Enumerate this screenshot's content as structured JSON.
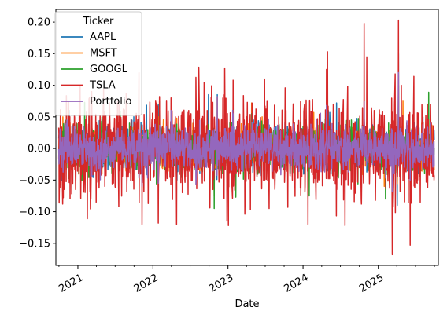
{
  "chart_data": {
    "type": "line",
    "title": "",
    "xlabel": "Date",
    "ylabel": "",
    "x_ticks": [
      "2021",
      "2022",
      "2023",
      "2024",
      "2025"
    ],
    "y_ticks": [
      "0.20",
      "0.15",
      "0.10",
      "0.05",
      "0.00",
      "−0.05",
      "−0.10",
      "−0.15"
    ],
    "xlim": [
      "2020-09-16",
      "2025-10-20"
    ],
    "ylim": [
      -0.185,
      0.22
    ],
    "grid": false,
    "legend": {
      "title": "Ticker",
      "placement": "top-left",
      "entries": [
        "AAPL",
        "MSFT",
        "GOOGL",
        "TSLA",
        "Portfolio"
      ]
    },
    "series": [
      {
        "name": "AAPL",
        "color": "#1f77b4",
        "values": [
          [
            "2020-10-13",
            -0.05
          ],
          [
            "2020-11-20",
            0.06
          ],
          [
            "2021-03-10",
            -0.04
          ],
          [
            "2021-08-01",
            0.02
          ],
          [
            "2022-01-27",
            0.07
          ],
          [
            "2022-04-28",
            -0.05
          ],
          [
            "2022-07-29",
            0.05
          ],
          [
            "2022-09-28",
            0.085
          ],
          [
            "2022-11-10",
            0.085
          ],
          [
            "2023-05-05",
            0.045
          ],
          [
            "2024-05-03",
            0.06
          ],
          [
            "2024-06-12",
            0.072
          ],
          [
            "2025-04-03",
            -0.09
          ],
          [
            "2025-04-09",
            0.15
          ],
          [
            "2025-08-06",
            0.05
          ]
        ]
      },
      {
        "name": "MSFT",
        "color": "#ff7f0e",
        "values": [
          [
            "2020-10-20",
            0.05
          ],
          [
            "2021-04-28",
            -0.04
          ],
          [
            "2022-01-28",
            0.05
          ],
          [
            "2022-04-27",
            0.048
          ],
          [
            "2022-10-26",
            -0.075
          ],
          [
            "2022-11-10",
            0.082
          ],
          [
            "2023-04-26",
            0.072
          ],
          [
            "2024-01-31",
            -0.03
          ],
          [
            "2025-01-30",
            -0.06
          ],
          [
            "2025-04-09",
            0.1
          ],
          [
            "2025-05-01",
            0.076
          ],
          [
            "2025-07-31",
            0.04
          ]
        ]
      },
      {
        "name": "GOOGL",
        "color": "#2ca02c",
        "values": [
          [
            "2021-02-03",
            0.073
          ],
          [
            "2021-04-28",
            0.05
          ],
          [
            "2022-02-02",
            0.075
          ],
          [
            "2022-10-26",
            -0.095
          ],
          [
            "2023-02-08",
            -0.077
          ],
          [
            "2023-04-26",
            0.055
          ],
          [
            "2024-01-31",
            -0.075
          ],
          [
            "2024-04-26",
            0.1
          ],
          [
            "2024-07-24",
            -0.05
          ],
          [
            "2025-02-05",
            -0.08
          ],
          [
            "2025-04-09",
            0.1
          ],
          [
            "2025-09-03",
            0.089
          ]
        ]
      },
      {
        "name": "TSLA",
        "color": "#d62728",
        "values": [
          [
            "2020-10-01",
            0.02
          ],
          [
            "2020-10-22",
            -0.078
          ],
          [
            "2020-11-17",
            0.075
          ],
          [
            "2020-12-21",
            -0.065
          ],
          [
            "2021-01-08",
            0.095
          ],
          [
            "2021-03-05",
            -0.08
          ],
          [
            "2021-03-09",
            0.09
          ],
          [
            "2021-05-12",
            -0.06
          ],
          [
            "2021-10-25",
            0.12
          ],
          [
            "2021-11-09",
            -0.12
          ],
          [
            "2021-12-20",
            -0.05
          ],
          [
            "2022-01-27",
            -0.118
          ],
          [
            "2022-03-30",
            0.08
          ],
          [
            "2022-04-26",
            -0.12
          ],
          [
            "2022-05-24",
            -0.07
          ],
          [
            "2022-06-24",
            0.06
          ],
          [
            "2022-10-20",
            -0.065
          ],
          [
            "2022-12-27",
            -0.115
          ],
          [
            "2023-01-03",
            -0.122
          ],
          [
            "2023-01-26",
            0.108
          ],
          [
            "2023-04-20",
            -0.097
          ],
          [
            "2023-07-20",
            -0.095
          ],
          [
            "2023-10-19",
            -0.093
          ],
          [
            "2024-01-25",
            -0.12
          ],
          [
            "2024-04-24",
            0.125
          ],
          [
            "2024-04-29",
            0.153
          ],
          [
            "2024-07-23",
            -0.122
          ],
          [
            "2024-10-11",
            -0.088
          ],
          [
            "2024-10-24",
            0.198
          ],
          [
            "2024-11-06",
            0.145
          ],
          [
            "2024-12-18",
            -0.082
          ],
          [
            "2025-03-10",
            -0.168
          ],
          [
            "2025-03-24",
            0.118
          ],
          [
            "2025-04-09",
            0.203
          ],
          [
            "2025-04-23",
            0.1
          ],
          [
            "2025-06-05",
            -0.153
          ],
          [
            "2025-07-24",
            -0.085
          ],
          [
            "2025-09-12",
            0.07
          ]
        ]
      },
      {
        "name": "Portfolio",
        "color": "#9467bd",
        "values": [
          [
            "2020-10-13",
            -0.03
          ],
          [
            "2020-11-09",
            0.045
          ],
          [
            "2021-03-05",
            -0.045
          ],
          [
            "2021-11-09",
            -0.06
          ],
          [
            "2022-01-27",
            -0.055
          ],
          [
            "2022-03-30",
            0.06
          ],
          [
            "2022-11-10",
            0.082
          ],
          [
            "2023-01-26",
            0.055
          ],
          [
            "2024-04-24",
            0.068
          ],
          [
            "2024-10-24",
            0.075
          ],
          [
            "2025-03-10",
            -0.068
          ],
          [
            "2025-04-09",
            0.12
          ],
          [
            "2025-06-05",
            -0.05
          ],
          [
            "2025-09-12",
            0.04
          ]
        ]
      }
    ]
  }
}
